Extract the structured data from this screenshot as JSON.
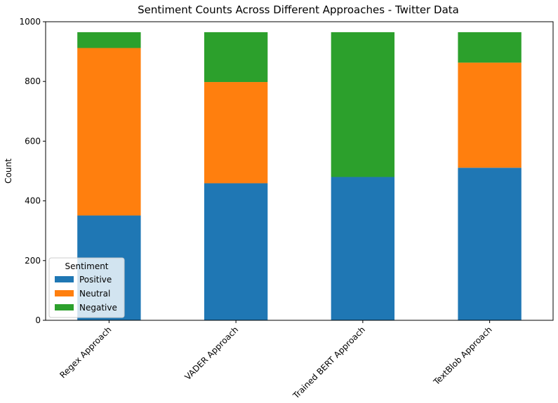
{
  "chart_data": {
    "type": "bar",
    "stacked": true,
    "title": "Sentiment Counts Across Different Approaches - Twitter Data",
    "xlabel": "",
    "ylabel": "Count",
    "categories": [
      "Regex Approach",
      "VADER Approach",
      "Trained BERT Approach",
      "TextBlob Approach"
    ],
    "series": [
      {
        "name": "Positive",
        "color": "#1f77b4",
        "values": [
          351,
          459,
          480,
          511
        ]
      },
      {
        "name": "Neutral",
        "color": "#ff7f0e",
        "values": [
          561,
          339,
          0,
          352
        ]
      },
      {
        "name": "Negative",
        "color": "#2ca02c",
        "values": [
          53,
          167,
          485,
          102
        ]
      }
    ],
    "ylim": [
      0,
      1000
    ],
    "yticks": [
      0,
      200,
      400,
      600,
      800,
      1000
    ],
    "grid": false,
    "legend": {
      "title": "Sentiment",
      "placement": "lower-left"
    }
  }
}
